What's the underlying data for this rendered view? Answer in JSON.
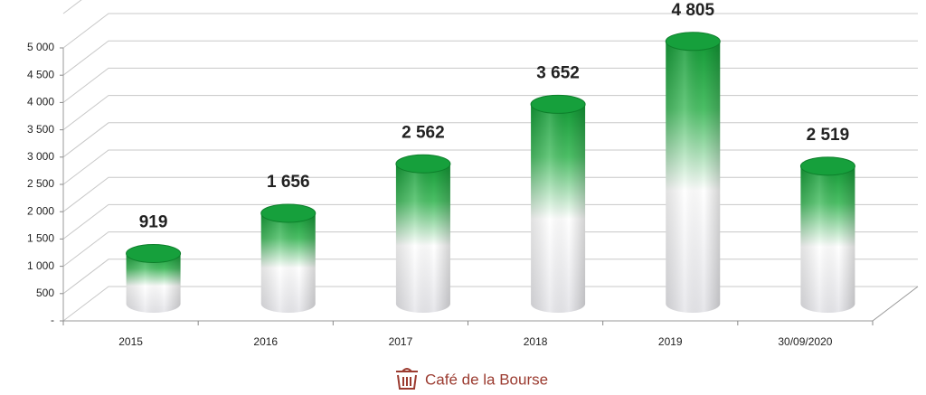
{
  "chart_data": {
    "type": "bar",
    "categories": [
      "2015",
      "2016",
      "2017",
      "2018",
      "2019",
      "30/09/2020"
    ],
    "values": [
      919,
      1656,
      2562,
      3652,
      4805,
      2519
    ],
    "value_labels": [
      "919",
      "1 656",
      "2 562",
      "3 652",
      "4 805",
      "2 519"
    ],
    "color": "#16a03c",
    "ylim": [
      0,
      5000
    ],
    "yticks": [
      {
        "value": 0,
        "label": "-"
      },
      500,
      {
        "value": 1000,
        "label": "1 000"
      },
      {
        "value": 1500,
        "label": "1 500"
      },
      {
        "value": 2000,
        "label": "2 000"
      },
      {
        "value": 2500,
        "label": "2 500"
      },
      {
        "value": 3000,
        "label": "3 000"
      },
      {
        "value": 3500,
        "label": "3 500"
      },
      {
        "value": 4000,
        "label": "4 000"
      },
      {
        "value": 4500,
        "label": "4 500"
      },
      {
        "value": 5000,
        "label": "5 000"
      }
    ],
    "grid": true,
    "source": "Café de la Bourse"
  }
}
